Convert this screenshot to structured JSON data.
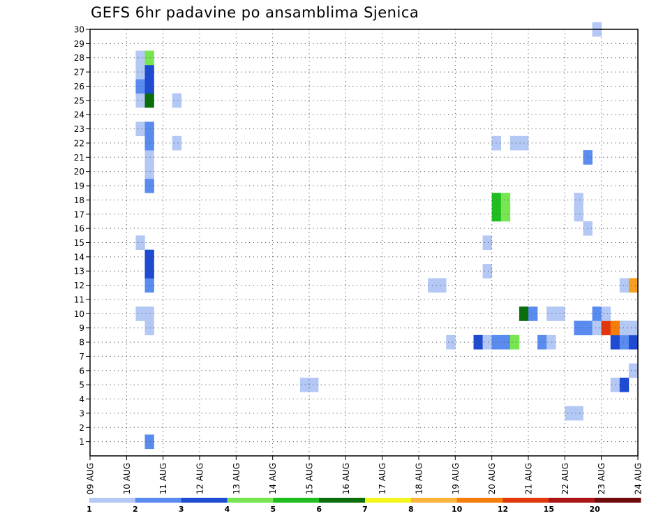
{
  "chart_data": {
    "type": "heatmap",
    "title": "GEFS 6hr padavine po ansamblima Sjenica",
    "x_ticks": [
      "09 AUG",
      "10 AUG",
      "11 AUG",
      "12 AUG",
      "13 AUG",
      "14 AUG",
      "15 AUG",
      "16 AUG",
      "17 AUG",
      "18 AUG",
      "19 AUG",
      "20 AUG",
      "21 AUG",
      "22 AUG",
      "23 AUG",
      "24 AUG"
    ],
    "y_ticks": [
      1,
      2,
      3,
      4,
      5,
      6,
      7,
      8,
      9,
      10,
      11,
      12,
      13,
      14,
      15,
      16,
      17,
      18,
      19,
      20,
      21,
      22,
      23,
      24,
      25,
      26,
      27,
      28,
      29,
      30
    ],
    "xlim": [
      "09 AUG",
      "24 AUG"
    ],
    "ylim": [
      0,
      30
    ],
    "grid": true,
    "colorbar": {
      "labels": [
        "1",
        "2",
        "3",
        "4",
        "5",
        "6",
        "7",
        "8",
        "10",
        "12",
        "15",
        "20"
      ],
      "colors": [
        "#b4c8f5",
        "#5a8cf0",
        "#1e4bd2",
        "#78e650",
        "#1ebe1e",
        "#0a6e0a",
        "#f5f51e",
        "#fab43c",
        "#f57d0a",
        "#e1370a",
        "#aa1414",
        "#6e0a0a"
      ]
    },
    "cells": [
      {
        "member": 1,
        "time": "10 AUG 12Z",
        "color": "#5a8cf0"
      },
      {
        "member": 3,
        "time": "22 AUG 06Z",
        "color": "#b4c8f5"
      },
      {
        "member": 3,
        "time": "22 AUG 00Z",
        "color": "#b4c8f5"
      },
      {
        "member": 5,
        "time": "15 AUG 00Z",
        "color": "#b4c8f5"
      },
      {
        "member": 5,
        "time": "14 AUG 18Z",
        "color": "#b4c8f5"
      },
      {
        "member": 5,
        "time": "23 AUG 06Z",
        "color": "#b4c8f5"
      },
      {
        "member": 5,
        "time": "23 AUG 12Z",
        "color": "#1e4bd2"
      },
      {
        "member": 6,
        "time": "23 AUG 18Z",
        "color": "#b4c8f5"
      },
      {
        "member": 8,
        "time": "18 AUG 18Z",
        "color": "#b4c8f5"
      },
      {
        "member": 8,
        "time": "19 AUG 12Z",
        "color": "#1e4bd2"
      },
      {
        "member": 8,
        "time": "19 AUG 18Z",
        "color": "#b4c8f5"
      },
      {
        "member": 8,
        "time": "20 AUG 00Z",
        "color": "#5a8cf0"
      },
      {
        "member": 8,
        "time": "20 AUG 06Z",
        "color": "#5a8cf0"
      },
      {
        "member": 8,
        "time": "20 AUG 12Z",
        "color": "#78e650"
      },
      {
        "member": 8,
        "time": "21 AUG 06Z",
        "color": "#5a8cf0"
      },
      {
        "member": 8,
        "time": "21 AUG 12Z",
        "color": "#b4c8f5"
      },
      {
        "member": 8,
        "time": "23 AUG 06Z",
        "color": "#1e4bd2"
      },
      {
        "member": 8,
        "time": "23 AUG 12Z",
        "color": "#5a8cf0"
      },
      {
        "member": 8,
        "time": "23 AUG 18Z",
        "color": "#1e4bd2"
      },
      {
        "member": 9,
        "time": "10 AUG 12Z",
        "color": "#b4c8f5"
      },
      {
        "member": 9,
        "time": "22 AUG 06Z",
        "color": "#5a8cf0"
      },
      {
        "member": 9,
        "time": "22 AUG 12Z",
        "color": "#5a8cf0"
      },
      {
        "member": 9,
        "time": "22 AUG 18Z",
        "color": "#b4c8f5"
      },
      {
        "member": 9,
        "time": "23 AUG 00Z",
        "color": "#e1370a"
      },
      {
        "member": 9,
        "time": "23 AUG 06Z",
        "color": "#f57d0a"
      },
      {
        "member": 9,
        "time": "23 AUG 12Z",
        "color": "#b4c8f5"
      },
      {
        "member": 9,
        "time": "23 AUG 18Z",
        "color": "#b4c8f5"
      },
      {
        "member": 10,
        "time": "10 AUG 06Z",
        "color": "#b4c8f5"
      },
      {
        "member": 10,
        "time": "10 AUG 12Z",
        "color": "#b4c8f5"
      },
      {
        "member": 10,
        "time": "20 AUG 18Z",
        "color": "#0a6e0a"
      },
      {
        "member": 10,
        "time": "21 AUG 00Z",
        "color": "#5a8cf0"
      },
      {
        "member": 10,
        "time": "21 AUG 12Z",
        "color": "#b4c8f5"
      },
      {
        "member": 10,
        "time": "21 AUG 18Z",
        "color": "#b4c8f5"
      },
      {
        "member": 10,
        "time": "22 AUG 18Z",
        "color": "#5a8cf0"
      },
      {
        "member": 10,
        "time": "23 AUG 00Z",
        "color": "#b4c8f5"
      },
      {
        "member": 12,
        "time": "18 AUG 06Z",
        "color": "#b4c8f5"
      },
      {
        "member": 12,
        "time": "18 AUG 12Z",
        "color": "#b4c8f5"
      },
      {
        "member": 12,
        "time": "10 AUG 12Z",
        "color": "#5a8cf0"
      },
      {
        "member": 12,
        "time": "23 AUG 12Z",
        "color": "#b4c8f5"
      },
      {
        "member": 12,
        "time": "23 AUG 18Z",
        "color": "#f5a01e"
      },
      {
        "member": 13,
        "time": "10 AUG 12Z",
        "color": "#1e4bd2"
      },
      {
        "member": 13,
        "time": "19 AUG 18Z",
        "color": "#b4c8f5"
      },
      {
        "member": 14,
        "time": "10 AUG 12Z",
        "color": "#1e4bd2"
      },
      {
        "member": 15,
        "time": "10 AUG 06Z",
        "color": "#b4c8f5"
      },
      {
        "member": 15,
        "time": "19 AUG 18Z",
        "color": "#b4c8f5"
      },
      {
        "member": 16,
        "time": "22 AUG 12Z",
        "color": "#b4c8f5"
      },
      {
        "member": 17,
        "time": "20 AUG 00Z",
        "color": "#1ebe1e"
      },
      {
        "member": 17,
        "time": "20 AUG 06Z",
        "color": "#78e650"
      },
      {
        "member": 17,
        "time": "22 AUG 06Z",
        "color": "#b4c8f5"
      },
      {
        "member": 18,
        "time": "20 AUG 00Z",
        "color": "#1ebe1e"
      },
      {
        "member": 18,
        "time": "20 AUG 06Z",
        "color": "#78e650"
      },
      {
        "member": 18,
        "time": "22 AUG 06Z",
        "color": "#b4c8f5"
      },
      {
        "member": 19,
        "time": "10 AUG 12Z",
        "color": "#5a8cf0"
      },
      {
        "member": 20,
        "time": "10 AUG 12Z",
        "color": "#b4c8f5"
      },
      {
        "member": 21,
        "time": "10 AUG 12Z",
        "color": "#b4c8f5"
      },
      {
        "member": 21,
        "time": "22 AUG 12Z",
        "color": "#5a8cf0"
      },
      {
        "member": 22,
        "time": "10 AUG 12Z",
        "color": "#5a8cf0"
      },
      {
        "member": 22,
        "time": "11 AUG 06Z",
        "color": "#b4c8f5"
      },
      {
        "member": 22,
        "time": "20 AUG 00Z",
        "color": "#b4c8f5"
      },
      {
        "member": 22,
        "time": "20 AUG 12Z",
        "color": "#b4c8f5"
      },
      {
        "member": 22,
        "time": "20 AUG 18Z",
        "color": "#b4c8f5"
      },
      {
        "member": 23,
        "time": "10 AUG 06Z",
        "color": "#b4c8f5"
      },
      {
        "member": 23,
        "time": "10 AUG 12Z",
        "color": "#5a8cf0"
      },
      {
        "member": 25,
        "time": "10 AUG 06Z",
        "color": "#b4c8f5"
      },
      {
        "member": 25,
        "time": "10 AUG 12Z",
        "color": "#0a6e0a"
      },
      {
        "member": 25,
        "time": "11 AUG 06Z",
        "color": "#b4c8f5"
      },
      {
        "member": 26,
        "time": "10 AUG 06Z",
        "color": "#5a8cf0"
      },
      {
        "member": 26,
        "time": "10 AUG 12Z",
        "color": "#1e4bd2"
      },
      {
        "member": 27,
        "time": "10 AUG 06Z",
        "color": "#b4c8f5"
      },
      {
        "member": 27,
        "time": "10 AUG 12Z",
        "color": "#1e4bd2"
      },
      {
        "member": 28,
        "time": "10 AUG 06Z",
        "color": "#b4c8f5"
      },
      {
        "member": 28,
        "time": "10 AUG 12Z",
        "color": "#78e650"
      },
      {
        "member": 30,
        "time": "22 AUG 18Z",
        "color": "#b4c8f5"
      }
    ]
  }
}
